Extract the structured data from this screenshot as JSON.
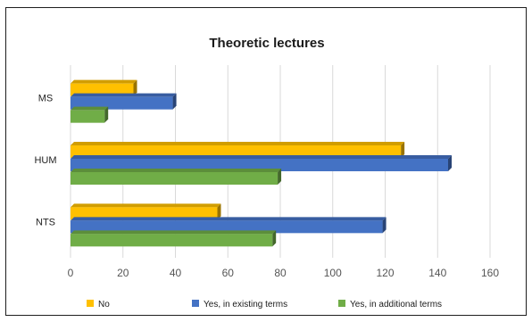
{
  "chart_data": {
    "type": "bar",
    "orientation": "horizontal",
    "title": "Theoretic lectures",
    "xlabel": "",
    "ylabel": "",
    "categories": [
      "MS",
      "HUM",
      "NTS"
    ],
    "series": [
      {
        "name": "No",
        "color": "#FFC000",
        "values": [
          24,
          126,
          56
        ]
      },
      {
        "name": "Yes, in existing terms",
        "color": "#4472C4",
        "values": [
          39,
          144,
          119
        ]
      },
      {
        "name": "Yes, in additional terms",
        "color": "#70AD47",
        "values": [
          13,
          79,
          77
        ]
      }
    ],
    "xlim": [
      0,
      160
    ],
    "xticks": [
      0,
      20,
      40,
      60,
      80,
      100,
      120,
      140,
      160
    ],
    "grid": true,
    "legend_position": "bottom"
  }
}
